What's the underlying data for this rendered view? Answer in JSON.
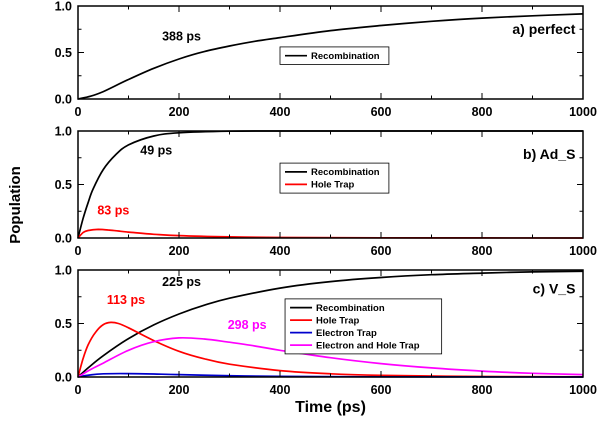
{
  "ylabel": "Population",
  "xlabel": "Time (ps)",
  "axes": {
    "xlim": [
      0,
      1000
    ],
    "ylim": [
      0,
      1
    ],
    "x_ticks": [
      0,
      200,
      400,
      600,
      800,
      1000
    ],
    "x_minor_ticks": [
      100,
      300,
      500,
      700,
      900
    ],
    "y_ticks": [
      {
        "v": 0,
        "label": "0.0"
      },
      {
        "v": 0.5,
        "label": "0.5"
      },
      {
        "v": 1,
        "label": "1.0"
      }
    ],
    "y_minor_ticks": [
      0.25,
      0.75
    ]
  },
  "colors": {
    "recombination": "#000000",
    "hole_trap": "#ff0000",
    "electron_trap": "#0000cc",
    "electron_and_hole_trap": "#ff00ff"
  },
  "chart_data": [
    {
      "type": "line",
      "panel_label": {
        "text": "a) perfect",
        "fx": 0.985,
        "fy": 0.3
      },
      "legend": {
        "fx": 0.4,
        "fy": 0.44,
        "entries": [
          "Recombination"
        ]
      },
      "annotations": [
        {
          "text": "388 ps",
          "x": 205,
          "y": 0.63,
          "color": "#000000"
        }
      ],
      "series": [
        {
          "name": "Recombination",
          "color": "#000000",
          "points": [
            [
              0,
              0
            ],
            [
              25,
              0.03
            ],
            [
              50,
              0.08
            ],
            [
              100,
              0.21
            ],
            [
              150,
              0.33
            ],
            [
              200,
              0.43
            ],
            [
              250,
              0.51
            ],
            [
              300,
              0.57
            ],
            [
              350,
              0.62
            ],
            [
              400,
              0.66
            ],
            [
              500,
              0.735
            ],
            [
              600,
              0.79
            ],
            [
              700,
              0.835
            ],
            [
              800,
              0.87
            ],
            [
              900,
              0.895
            ],
            [
              1000,
              0.915
            ]
          ]
        }
      ]
    },
    {
      "type": "line",
      "panel_label": {
        "text": "b) Ad_S",
        "fx": 0.985,
        "fy": 0.26
      },
      "legend": {
        "fx": 0.4,
        "fy": 0.3,
        "entries": [
          "Recombination",
          "Hole Trap"
        ]
      },
      "annotations": [
        {
          "text": "49 ps",
          "x": 155,
          "y": 0.78,
          "color": "#000000"
        },
        {
          "text": "83 ps",
          "x": 70,
          "y": 0.22,
          "color": "#ff0000"
        }
      ],
      "series": [
        {
          "name": "Recombination",
          "color": "#000000",
          "points": [
            [
              0,
              0
            ],
            [
              10,
              0.18
            ],
            [
              20,
              0.33
            ],
            [
              30,
              0.46
            ],
            [
              50,
              0.64
            ],
            [
              75,
              0.78
            ],
            [
              100,
              0.87
            ],
            [
              150,
              0.953
            ],
            [
              200,
              0.983
            ],
            [
              300,
              0.998
            ],
            [
              400,
              1
            ],
            [
              600,
              1
            ],
            [
              800,
              1
            ],
            [
              1000,
              1
            ]
          ]
        },
        {
          "name": "Hole Trap",
          "color": "#ff0000",
          "points": [
            [
              0,
              0
            ],
            [
              10,
              0.05
            ],
            [
              20,
              0.07
            ],
            [
              40,
              0.08
            ],
            [
              60,
              0.075
            ],
            [
              80,
              0.065
            ],
            [
              100,
              0.055
            ],
            [
              150,
              0.035
            ],
            [
              200,
              0.022
            ],
            [
              300,
              0.01
            ],
            [
              400,
              0.005
            ],
            [
              600,
              0.002
            ],
            [
              800,
              0.001
            ],
            [
              1000,
              0
            ]
          ]
        }
      ]
    },
    {
      "type": "line",
      "panel_label": {
        "text": "c) V_S",
        "fx": 0.985,
        "fy": 0.22
      },
      "legend": {
        "fx": 0.41,
        "fy": 0.27,
        "entries": [
          "Recombination",
          "Hole Trap",
          "Electron Trap",
          "Electron and Hole Trap"
        ]
      },
      "annotations": [
        {
          "text": "225 ps",
          "x": 205,
          "y": 0.85,
          "color": "#000000"
        },
        {
          "text": "113 ps",
          "x": 95,
          "y": 0.68,
          "color": "#ff0000"
        },
        {
          "text": "298 ps",
          "x": 335,
          "y": 0.45,
          "color": "#ff00ff"
        }
      ],
      "series": [
        {
          "name": "Recombination",
          "color": "#000000",
          "points": [
            [
              0,
              0
            ],
            [
              20,
              0.085
            ],
            [
              50,
              0.199
            ],
            [
              100,
              0.359
            ],
            [
              150,
              0.487
            ],
            [
              200,
              0.589
            ],
            [
              250,
              0.671
            ],
            [
              300,
              0.736
            ],
            [
              400,
              0.831
            ],
            [
              500,
              0.892
            ],
            [
              600,
              0.93
            ],
            [
              700,
              0.956
            ],
            [
              800,
              0.971
            ],
            [
              900,
              0.982
            ],
            [
              1000,
              0.988
            ]
          ]
        },
        {
          "name": "Hole Trap",
          "color": "#ff0000",
          "points": [
            [
              0,
              0
            ],
            [
              10,
              0.17
            ],
            [
              20,
              0.3
            ],
            [
              35,
              0.42
            ],
            [
              50,
              0.49
            ],
            [
              65,
              0.51
            ],
            [
              80,
              0.5
            ],
            [
              100,
              0.46
            ],
            [
              150,
              0.34
            ],
            [
              200,
              0.24
            ],
            [
              250,
              0.17
            ],
            [
              300,
              0.12
            ],
            [
              400,
              0.06
            ],
            [
              500,
              0.03
            ],
            [
              600,
              0.015
            ],
            [
              800,
              0.005
            ],
            [
              1000,
              0.002
            ]
          ]
        },
        {
          "name": "Electron Trap",
          "color": "#0000cc",
          "points": [
            [
              0,
              0
            ],
            [
              25,
              0.02
            ],
            [
              50,
              0.03
            ],
            [
              100,
              0.032
            ],
            [
              150,
              0.028
            ],
            [
              200,
              0.022
            ],
            [
              300,
              0.012
            ],
            [
              400,
              0.006
            ],
            [
              600,
              0.002
            ],
            [
              800,
              0.001
            ],
            [
              1000,
              0
            ]
          ]
        },
        {
          "name": "Electron and Hole Trap",
          "color": "#ff00ff",
          "points": [
            [
              0,
              0
            ],
            [
              25,
              0.07
            ],
            [
              50,
              0.13
            ],
            [
              100,
              0.25
            ],
            [
              150,
              0.33
            ],
            [
              200,
              0.365
            ],
            [
              250,
              0.355
            ],
            [
              300,
              0.325
            ],
            [
              350,
              0.29
            ],
            [
              400,
              0.25
            ],
            [
              500,
              0.18
            ],
            [
              600,
              0.125
            ],
            [
              700,
              0.085
            ],
            [
              800,
              0.055
            ],
            [
              900,
              0.035
            ],
            [
              1000,
              0.022
            ]
          ]
        }
      ]
    }
  ]
}
